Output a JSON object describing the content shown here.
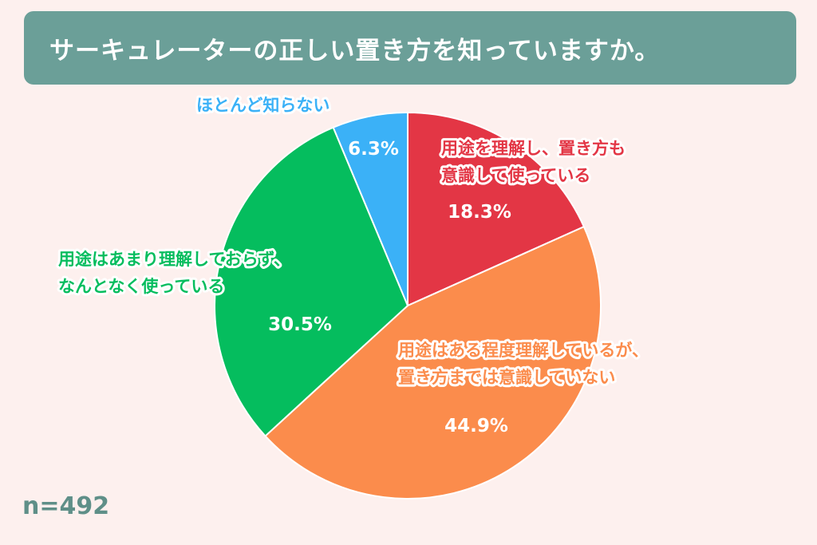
{
  "title": "サーキュレーターの正しい置き方を知っていますか。",
  "sample_size": "n=492",
  "colors": {
    "title_bg": "#6b9f98",
    "background": "#fdf0ee"
  },
  "chart_data": {
    "type": "pie",
    "title": "サーキュレーターの正しい置き方を知っていますか。",
    "start": "12 o'clock",
    "direction": "clockwise",
    "slices": [
      {
        "label_lines": [
          "用途を理解し、置き方も",
          "意識して使っている"
        ],
        "value": 18.3,
        "value_label": "18.3%",
        "color": "#e33645"
      },
      {
        "label_lines": [
          "用途はある程度理解しているが、",
          "置き方までは意識していない"
        ],
        "value": 44.9,
        "value_label": "44.9%",
        "color": "#fb8c4c"
      },
      {
        "label_lines": [
          "用途はあまり理解しておらず、",
          "なんとなく使っている"
        ],
        "value": 30.5,
        "value_label": "30.5%",
        "color": "#05bd5e"
      },
      {
        "label_lines": [
          "ほとんど知らない"
        ],
        "value": 6.3,
        "value_label": "6.3%",
        "color": "#3bb1f7"
      }
    ]
  }
}
